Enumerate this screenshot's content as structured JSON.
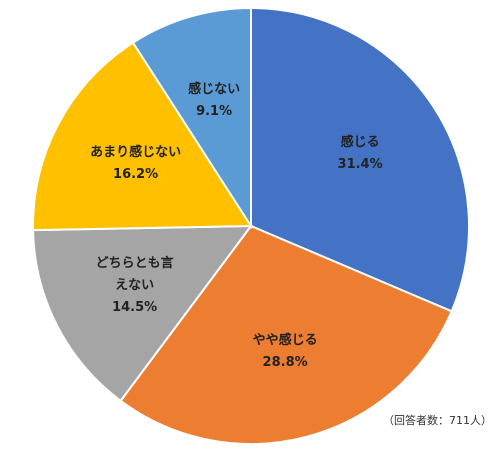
{
  "chart_data": {
    "type": "pie",
    "categories": [
      "感じる",
      "やや感じる",
      "どちらとも言えない",
      "あまり感じない",
      "感じない"
    ],
    "values": [
      31.4,
      28.8,
      14.5,
      16.2,
      9.1
    ],
    "value_labels": [
      "31.4%",
      "28.8%",
      "14.5%",
      "16.2%",
      "9.1%"
    ],
    "colors": [
      "#4472c4",
      "#ed7d31",
      "#a5a5a5",
      "#ffc000",
      "#5b9bd5"
    ],
    "annotation": "（回答者数：711人）"
  }
}
